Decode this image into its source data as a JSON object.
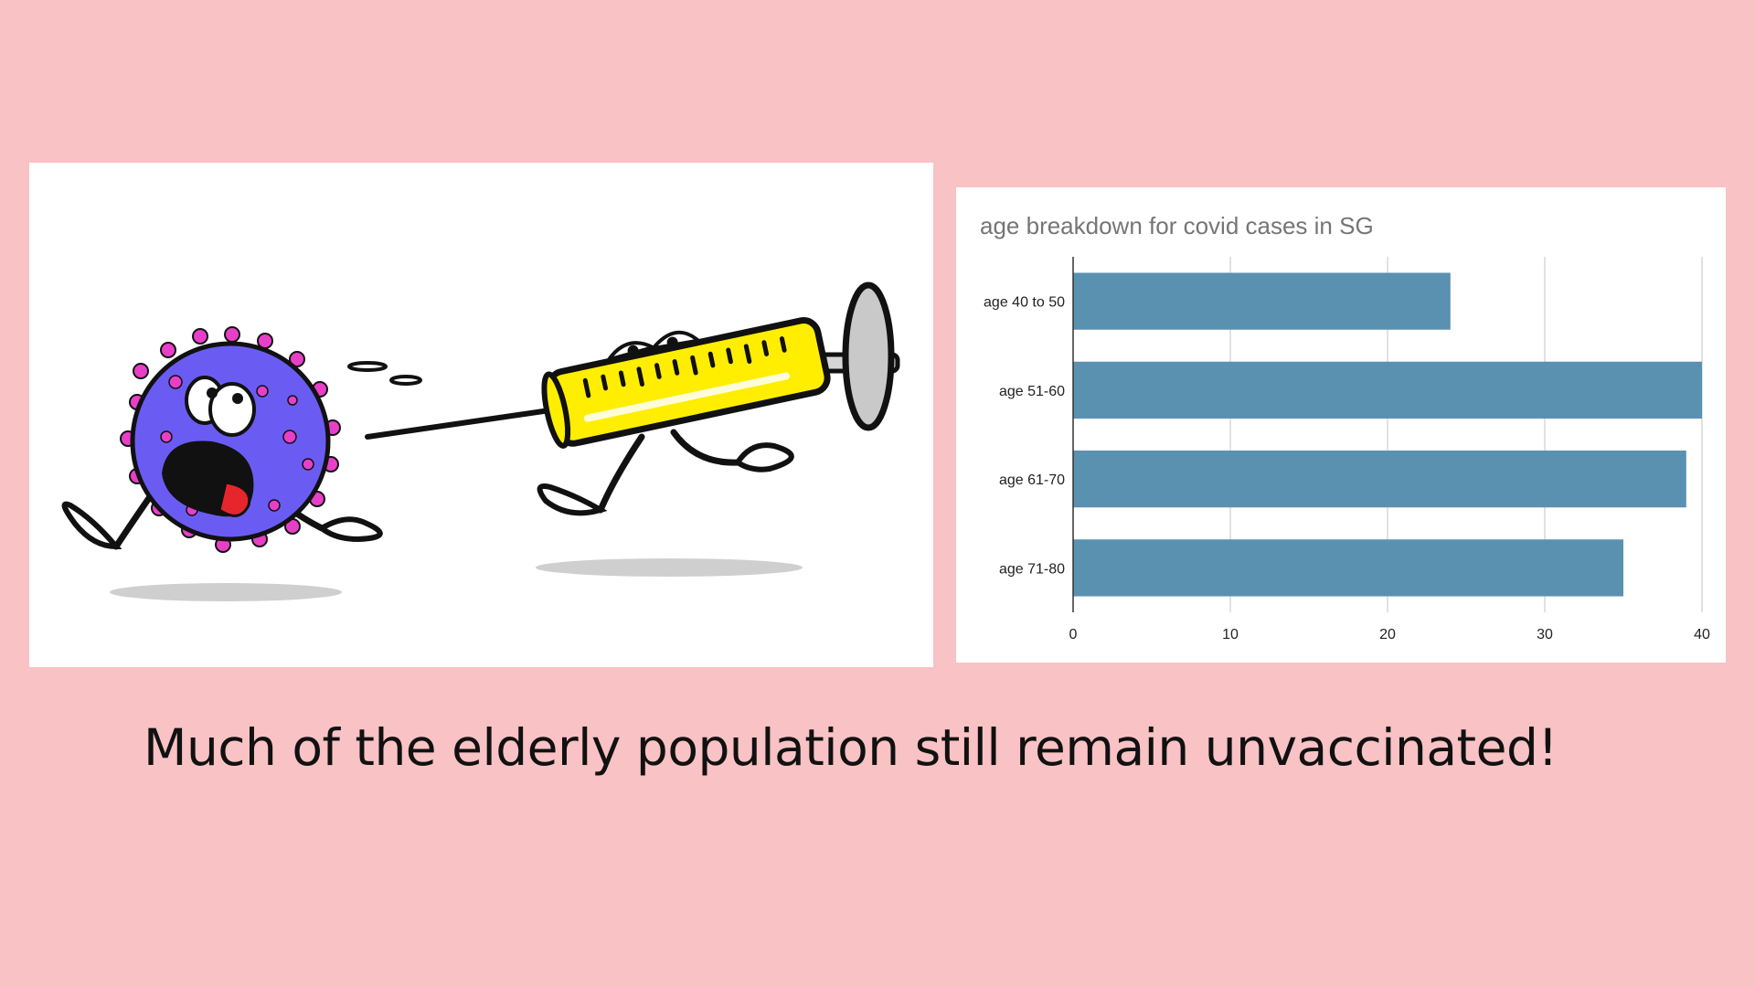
{
  "slide": {
    "background": "#f9c2c4",
    "caption": "Much of the elderly population still remain unvaccinated!"
  },
  "illustration": {
    "characters": [
      "virus-character",
      "syringe-character"
    ],
    "colors": {
      "virus_body": "#6a5cf2",
      "virus_spikes": "#e83fc9",
      "syringe_barrel": "#ffee00"
    }
  },
  "chart_data": {
    "type": "bar",
    "orientation": "horizontal",
    "title": "age breakdown for covid cases in SG",
    "categories": [
      "age 40 to 50",
      "age 51-60",
      "age 61-70",
      "age 71-80"
    ],
    "values": [
      24,
      40,
      39,
      35
    ],
    "xlim": [
      0,
      40
    ],
    "xticks": [
      "0",
      "10",
      "20",
      "30",
      "40"
    ],
    "xlabel": "",
    "ylabel": "",
    "grid": true,
    "legend": "none",
    "bar_color": "#5a91b1"
  }
}
